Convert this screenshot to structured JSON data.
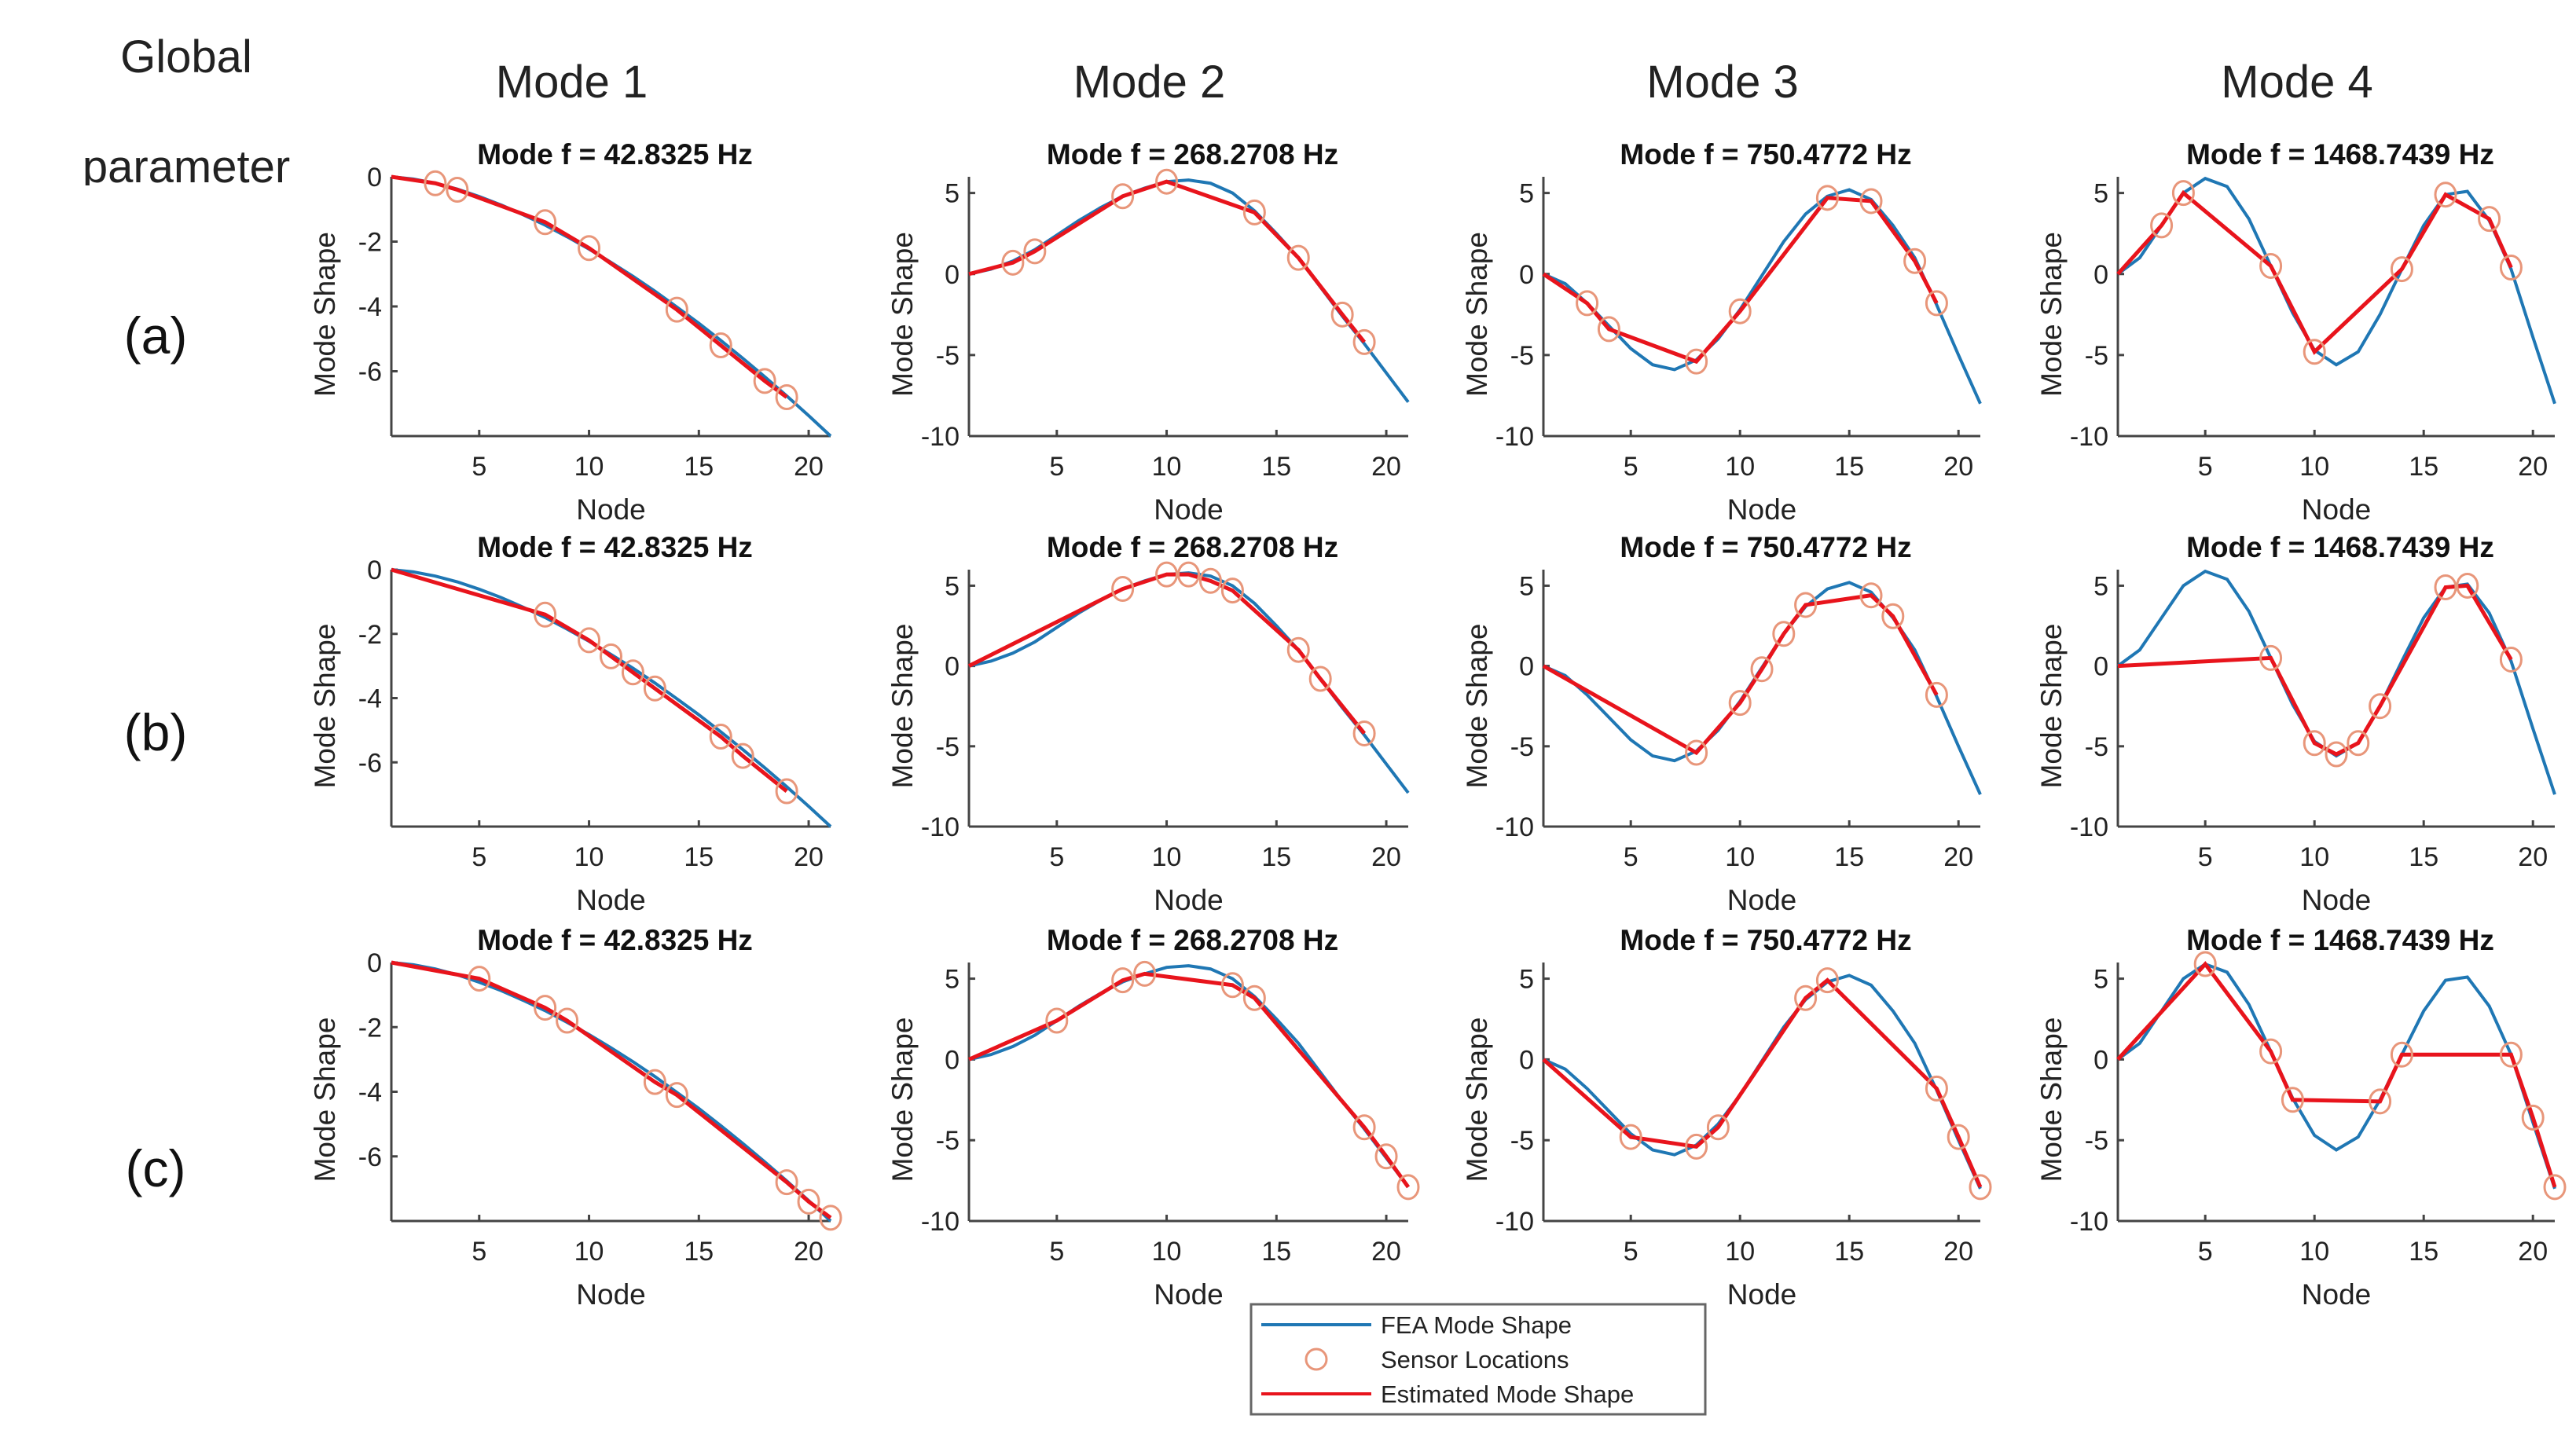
{
  "figure": {
    "corner_label": [
      "Global",
      "parameter"
    ],
    "column_headers": [
      "Mode 1",
      "Mode 2",
      "Mode 3",
      "Mode 4"
    ],
    "row_labels": [
      "(a)",
      "(b)",
      "(c)"
    ]
  },
  "legend": {
    "placement": "bottom-center",
    "entries": [
      {
        "label": "FEA Mode Shape",
        "color": "#1f77b4",
        "style": "line"
      },
      {
        "label": "Sensor Locations",
        "color": "#e8967a",
        "style": "circle"
      },
      {
        "label": "Estimated Mode Shape",
        "color": "#e8141c",
        "style": "line"
      }
    ]
  },
  "chart_data": {
    "type": "line",
    "xlabel": "Node",
    "ylabel": "Mode Shape",
    "xlim": [
      1,
      21
    ],
    "xticks": [
      5,
      10,
      15,
      20
    ],
    "grid": false,
    "modes": [
      {
        "title": "Mode  f = 42.8325 Hz",
        "ylim": [
          -8,
          0
        ],
        "yticks": [
          0,
          -2,
          -4,
          -6
        ],
        "fea": [
          0,
          -0.07,
          -0.2,
          -0.38,
          -0.61,
          -0.87,
          -1.17,
          -1.49,
          -1.85,
          -2.23,
          -2.64,
          -3.07,
          -3.53,
          -4.02,
          -4.52,
          -5.05,
          -5.6,
          -6.17,
          -6.76,
          -7.37,
          -8.0
        ]
      },
      {
        "title": "Mode  f = 268.2708 Hz",
        "ylim": [
          -10,
          6
        ],
        "yticks": [
          5,
          0,
          -5,
          -10
        ],
        "fea": [
          0,
          0.3,
          0.8,
          1.5,
          2.4,
          3.3,
          4.1,
          4.8,
          5.3,
          5.7,
          5.8,
          5.6,
          5.0,
          3.9,
          2.5,
          1.0,
          -0.8,
          -2.6,
          -4.3,
          -6.1,
          -7.9
        ]
      },
      {
        "title": "Mode  f = 750.4772 Hz",
        "ylim": [
          -10,
          6
        ],
        "yticks": [
          5,
          0,
          -5,
          -10
        ],
        "fea": [
          0,
          -0.6,
          -1.8,
          -3.2,
          -4.6,
          -5.6,
          -5.9,
          -5.3,
          -4.0,
          -2.2,
          -0.1,
          2.0,
          3.7,
          4.8,
          5.2,
          4.6,
          3.0,
          1.0,
          -1.9,
          -5.0,
          -8.0
        ]
      },
      {
        "title": "Mode  f = 1468.7439 Hz",
        "ylim": [
          -10,
          6
        ],
        "yticks": [
          5,
          0,
          -5,
          -10
        ],
        "fea": [
          0,
          1.0,
          3.0,
          5.0,
          5.9,
          5.4,
          3.4,
          0.5,
          -2.4,
          -4.7,
          -5.6,
          -4.8,
          -2.5,
          0.3,
          3.0,
          4.9,
          5.1,
          3.3,
          0.3,
          -3.9,
          -8.0
        ]
      }
    ],
    "rows": [
      {
        "label": "(a)",
        "panels": [
          {
            "sensors": [
              [
                3,
                -0.2
              ],
              [
                4,
                -0.4
              ],
              [
                8,
                -1.4
              ],
              [
                10,
                -2.2
              ],
              [
                14,
                -4.1
              ],
              [
                16,
                -5.2
              ],
              [
                18,
                -6.3
              ],
              [
                19,
                -6.8
              ]
            ]
          },
          {
            "sensors": [
              [
                3,
                0.7
              ],
              [
                4,
                1.4
              ],
              [
                8,
                4.8
              ],
              [
                10,
                5.7
              ],
              [
                14,
                3.8
              ],
              [
                16,
                1.0
              ],
              [
                18,
                -2.5
              ],
              [
                19,
                -4.2
              ]
            ]
          },
          {
            "sensors": [
              [
                3,
                -1.8
              ],
              [
                4,
                -3.4
              ],
              [
                8,
                -5.4
              ],
              [
                10,
                -2.3
              ],
              [
                14,
                4.7
              ],
              [
                16,
                4.5
              ],
              [
                18,
                0.8
              ],
              [
                19,
                -1.8
              ]
            ]
          },
          {
            "sensors": [
              [
                3,
                3.0
              ],
              [
                4,
                5.0
              ],
              [
                8,
                0.5
              ],
              [
                10,
                -4.8
              ],
              [
                14,
                0.3
              ],
              [
                16,
                4.9
              ],
              [
                18,
                3.4
              ],
              [
                19,
                0.4
              ]
            ]
          }
        ]
      },
      {
        "label": "(b)",
        "panels": [
          {
            "sensors": [
              [
                8,
                -1.4
              ],
              [
                10,
                -2.2
              ],
              [
                11,
                -2.7
              ],
              [
                12,
                -3.2
              ],
              [
                13,
                -3.7
              ],
              [
                16,
                -5.2
              ],
              [
                17,
                -5.8
              ],
              [
                19,
                -6.9
              ]
            ]
          },
          {
            "sensors": [
              [
                8,
                4.8
              ],
              [
                10,
                5.7
              ],
              [
                11,
                5.7
              ],
              [
                12,
                5.3
              ],
              [
                13,
                4.7
              ],
              [
                16,
                1.0
              ],
              [
                17,
                -0.8
              ],
              [
                19,
                -4.2
              ]
            ]
          },
          {
            "sensors": [
              [
                8,
                -5.4
              ],
              [
                10,
                -2.3
              ],
              [
                11,
                -0.2
              ],
              [
                12,
                2.0
              ],
              [
                13,
                3.8
              ],
              [
                16,
                4.4
              ],
              [
                17,
                3.1
              ],
              [
                19,
                -1.8
              ]
            ]
          },
          {
            "sensors": [
              [
                8,
                0.5
              ],
              [
                10,
                -4.8
              ],
              [
                11,
                -5.5
              ],
              [
                12,
                -4.8
              ],
              [
                13,
                -2.5
              ],
              [
                16,
                4.9
              ],
              [
                17,
                5.0
              ],
              [
                19,
                0.4
              ]
            ]
          }
        ]
      },
      {
        "label": "(c)",
        "panels": [
          {
            "sensors": [
              [
                5,
                -0.5
              ],
              [
                8,
                -1.4
              ],
              [
                9,
                -1.8
              ],
              [
                13,
                -3.7
              ],
              [
                14,
                -4.1
              ],
              [
                19,
                -6.8
              ],
              [
                20,
                -7.4
              ],
              [
                21,
                -7.9
              ]
            ]
          },
          {
            "sensors": [
              [
                5,
                2.4
              ],
              [
                8,
                4.9
              ],
              [
                9,
                5.3
              ],
              [
                13,
                4.6
              ],
              [
                14,
                3.8
              ],
              [
                19,
                -4.2
              ],
              [
                20,
                -6.0
              ],
              [
                21,
                -7.9
              ]
            ]
          },
          {
            "sensors": [
              [
                5,
                -4.8
              ],
              [
                8,
                -5.4
              ],
              [
                9,
                -4.2
              ],
              [
                13,
                3.8
              ],
              [
                14,
                4.9
              ],
              [
                19,
                -1.8
              ],
              [
                20,
                -4.8
              ],
              [
                21,
                -7.9
              ]
            ]
          },
          {
            "sensors": [
              [
                5,
                5.9
              ],
              [
                8,
                0.5
              ],
              [
                9,
                -2.5
              ],
              [
                13,
                -2.6
              ],
              [
                14,
                0.3
              ],
              [
                19,
                0.3
              ],
              [
                20,
                -3.6
              ],
              [
                21,
                -7.9
              ]
            ]
          }
        ]
      }
    ]
  }
}
